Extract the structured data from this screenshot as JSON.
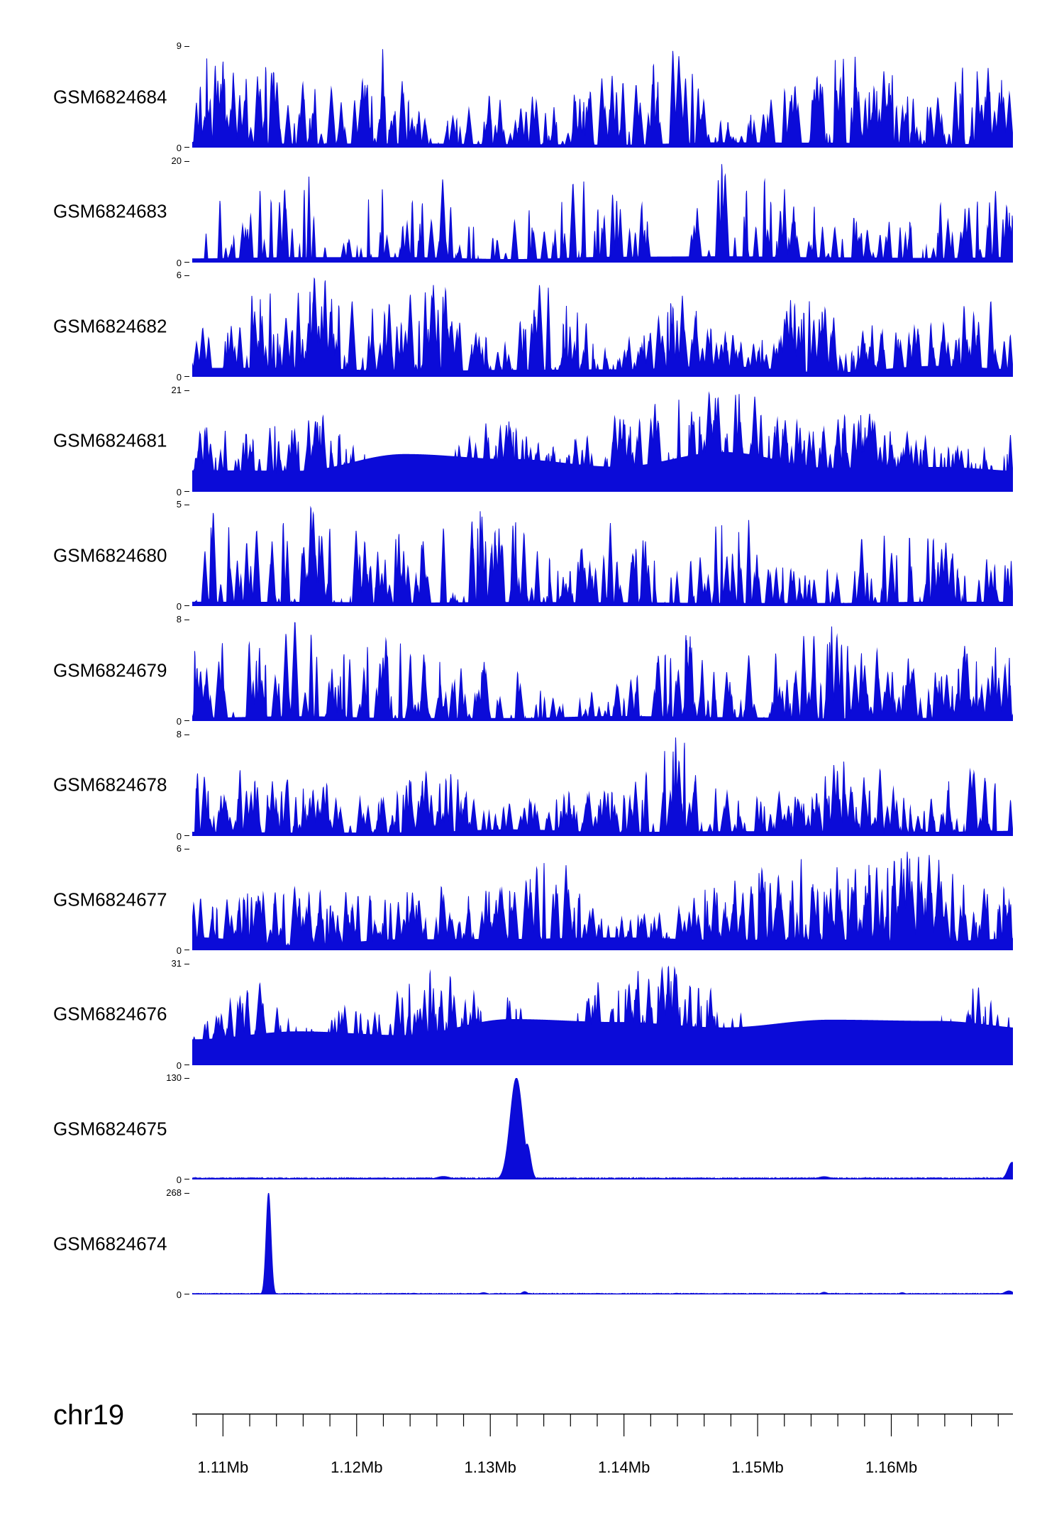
{
  "chromosome": "chr19",
  "accent_color": "#0b0bd8",
  "y_axis_zero_label": "0",
  "x_axis": {
    "start_mb": 1.1077,
    "end_mb": 1.1691,
    "minor_tick_interval_mb": 0.002,
    "major_tick_interval_mb": 0.01,
    "major_tick_labels": [
      "1.11Mb",
      "1.12Mb",
      "1.13Mb",
      "1.14Mb",
      "1.15Mb",
      "1.16Mb"
    ],
    "major_tick_positions_mb": [
      1.11,
      1.12,
      1.13,
      1.14,
      1.15,
      1.16
    ]
  },
  "chart_data": {
    "type": "area",
    "description": "Stacked genome-browser read-coverage tracks on chr19, region ~1.1077-1.1691 Mb. Tracks GSM6824684 down to GSM6824676 show dense noisy spiky coverage filled solid blue; GSM6824675 is near-flat with one dominant peak (~130) near 1.1315 Mb plus a rise at the right edge; GSM6824674 is near-flat with one sharp dominant peak (~268) near 1.1134 Mb.",
    "x_range_mb": [
      1.1077,
      1.1691
    ],
    "y_label_each_track": "0 to ymax",
    "tracks": [
      {
        "label": "GSM6824684",
        "ymax": 9,
        "ymin": 0,
        "profile": "dense",
        "seed": 4684,
        "density": 0.42,
        "spike_pow": 2.1,
        "spike_width": 5,
        "cut": 0.03,
        "fullness": 0.05
      },
      {
        "label": "GSM6824683",
        "ymax": 20,
        "ymin": 0,
        "profile": "dense",
        "seed": 4683,
        "density": 0.3,
        "spike_pow": 2.6,
        "spike_width": 4.5,
        "cut": 0.04,
        "fullness": 0.05
      },
      {
        "label": "GSM6824682",
        "ymax": 6,
        "ymin": 0,
        "profile": "dense",
        "seed": 4682,
        "density": 0.5,
        "spike_pow": 1.9,
        "spike_width": 5,
        "cut": 0.02,
        "fullness": 0.08
      },
      {
        "label": "GSM6824681",
        "ymax": 21,
        "ymin": 0,
        "profile": "dense",
        "seed": 4681,
        "density": 0.55,
        "spike_pow": 1.5,
        "spike_width": 7,
        "cut": 0.01,
        "fullness": 0.38
      },
      {
        "label": "GSM6824680",
        "ymax": 5,
        "ymin": 0,
        "profile": "dense",
        "seed": 4680,
        "density": 0.4,
        "spike_pow": 2.3,
        "spike_width": 4.5,
        "cut": 0.04,
        "fullness": 0.04
      },
      {
        "label": "GSM6824679",
        "ymax": 8,
        "ymin": 0,
        "profile": "dense",
        "seed": 4679,
        "density": 0.4,
        "spike_pow": 2.3,
        "spike_width": 5,
        "cut": 0.04,
        "fullness": 0.05
      },
      {
        "label": "GSM6824678",
        "ymax": 8,
        "ymin": 0,
        "profile": "dense",
        "seed": 4678,
        "density": 0.48,
        "spike_pow": 2.0,
        "spike_width": 5,
        "cut": 0.03,
        "fullness": 0.07
      },
      {
        "label": "GSM6824677",
        "ymax": 6,
        "ymin": 0,
        "profile": "dense",
        "seed": 4677,
        "density": 0.52,
        "spike_pow": 1.8,
        "spike_width": 5.5,
        "cut": 0.02,
        "fullness": 0.12
      },
      {
        "label": "GSM6824676",
        "ymax": 31,
        "ymin": 0,
        "profile": "dense",
        "seed": 4676,
        "density": 0.55,
        "spike_pow": 1.5,
        "spike_width": 8,
        "cut": 0.01,
        "fullness": 0.42
      },
      {
        "label": "GSM6824675",
        "ymax": 130,
        "ymin": 0,
        "profile": "peaks",
        "seed": 4675,
        "baseline": 0.012,
        "peaks": [
          {
            "pos": 0.306,
            "h": 0.03,
            "w": 0.02
          },
          {
            "pos": 0.395,
            "h": 1.0,
            "w": 0.018
          },
          {
            "pos": 0.408,
            "h": 0.35,
            "w": 0.01
          },
          {
            "pos": 0.77,
            "h": 0.028,
            "w": 0.018
          },
          {
            "pos": 0.999,
            "h": 0.17,
            "w": 0.012
          }
        ]
      },
      {
        "label": "GSM6824674",
        "ymax": 268,
        "ymin": 0,
        "profile": "peaks",
        "seed": 4674,
        "baseline": 0.008,
        "peaks": [
          {
            "pos": 0.093,
            "h": 1.0,
            "w": 0.007
          },
          {
            "pos": 0.27,
            "h": 0.012,
            "w": 0.01
          },
          {
            "pos": 0.355,
            "h": 0.018,
            "w": 0.01
          },
          {
            "pos": 0.405,
            "h": 0.028,
            "w": 0.008
          },
          {
            "pos": 0.59,
            "h": 0.012,
            "w": 0.01
          },
          {
            "pos": 0.77,
            "h": 0.022,
            "w": 0.009
          },
          {
            "pos": 0.865,
            "h": 0.018,
            "w": 0.008
          },
          {
            "pos": 0.995,
            "h": 0.035,
            "w": 0.012
          }
        ]
      }
    ]
  }
}
